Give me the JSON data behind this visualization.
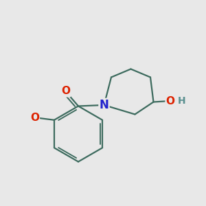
{
  "background_color": "#e8e8e8",
  "bond_color": "#3d6b5e",
  "bond_width": 1.6,
  "atom_colors": {
    "O": "#dd2200",
    "N": "#2222cc",
    "H": "#5a9090"
  },
  "font_size_atoms": 11,
  "font_size_H": 10,
  "figsize": [
    3.0,
    3.0
  ],
  "dpi": 100
}
